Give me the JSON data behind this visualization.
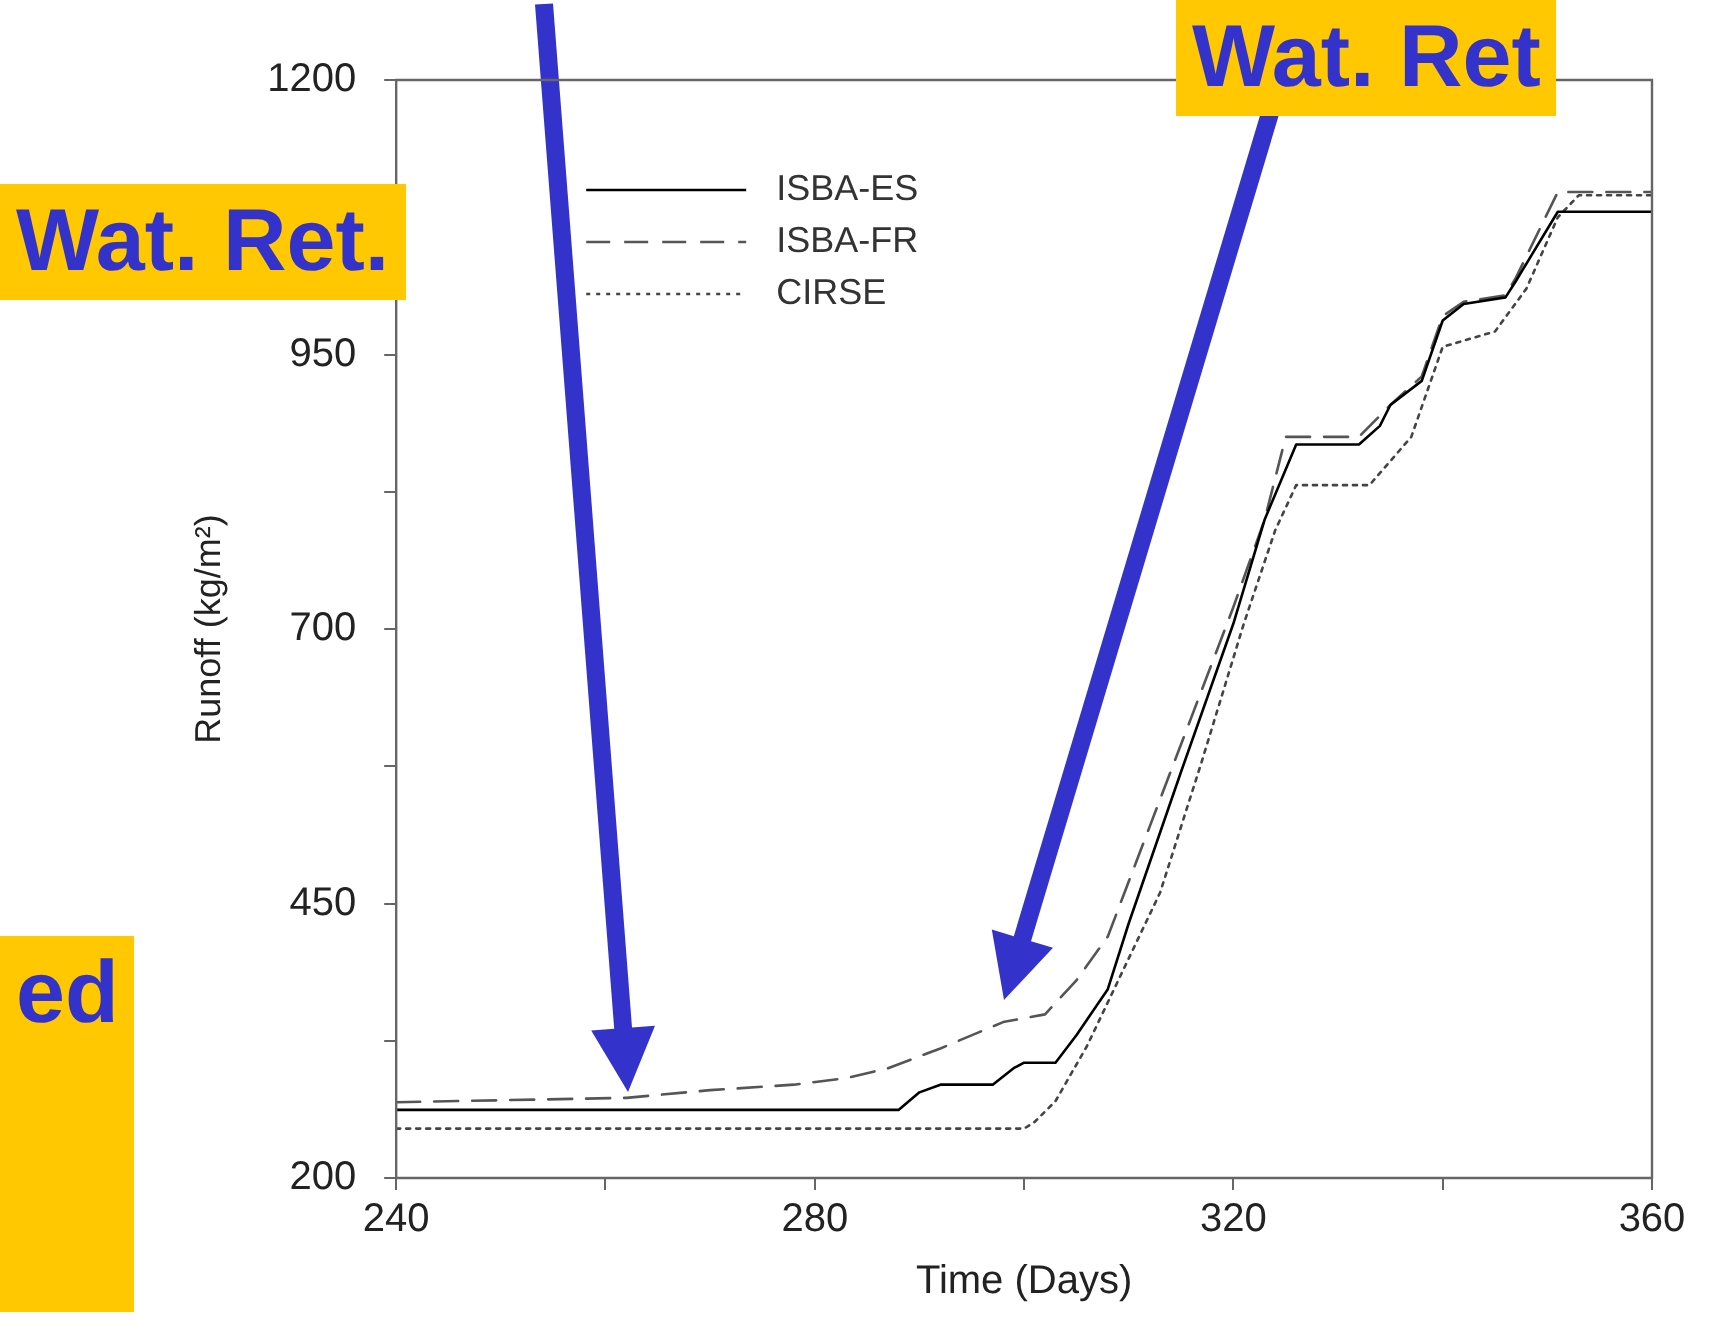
{
  "chart_data": {
    "type": "line",
    "xlabel": "Time (Days)",
    "ylabel": "Runoff (kg/m²)",
    "xlim": [
      240,
      360
    ],
    "xticks": [
      240,
      {
        "value": 260,
        "label": null
      },
      280,
      {
        "value": 300,
        "label": null
      },
      320,
      {
        "value": 340,
        "label": null
      },
      360
    ],
    "ylim": [
      200,
      1200
    ],
    "yticks": [
      200,
      {
        "value": 325,
        "label": null
      },
      450,
      {
        "value": 575,
        "label": null
      },
      700,
      {
        "value": 825,
        "label": null
      },
      950,
      {
        "value": 1075,
        "label": null
      },
      1200
    ],
    "grid": false,
    "legend": "top left",
    "marker": "none",
    "annotations": [
      "Wat. Ret.",
      "Wat. Ret",
      "ed"
    ],
    "series": [
      {
        "name": "ISBA-ES",
        "color": "#000000",
        "line_style": "solid",
        "x": [
          240,
          288,
          290,
          292,
          297,
          299,
          300,
          303,
          305,
          308,
          310,
          315,
          320,
          323,
          326,
          332,
          334,
          335,
          338,
          340,
          342,
          346,
          347,
          351,
          360
        ],
        "values": [
          262,
          262,
          278,
          285,
          285,
          300,
          305,
          305,
          330,
          372,
          432,
          570,
          705,
          800,
          868,
          868,
          885,
          904,
          926,
          981,
          996,
          1002,
          1017,
          1080,
          1080
        ]
      },
      {
        "name": "ISBA-FR",
        "color": "#555555",
        "line_style": "dashed",
        "x": [
          240,
          262,
          270,
          278,
          283,
          287,
          292,
          298,
          302,
          305,
          308,
          312,
          316,
          320,
          323,
          325,
          332,
          335,
          338,
          340,
          342,
          346,
          347,
          351,
          360
        ],
        "values": [
          269,
          273,
          280,
          285,
          291,
          300,
          318,
          342,
          349,
          380,
          420,
          520,
          620,
          720,
          800,
          875,
          875,
          904,
          930,
          985,
          998,
          1004,
          1020,
          1098,
          1098
        ]
      },
      {
        "name": "CIRSE",
        "color": "#444444",
        "line_style": "dotted",
        "x": [
          240,
          300,
          301,
          303,
          306,
          310,
          313,
          317,
          321,
          324,
          326,
          333,
          337,
          340,
          345,
          348,
          351,
          353,
          360
        ],
        "values": [
          245,
          245,
          251,
          270,
          320,
          400,
          460,
          580,
          705,
          790,
          831,
          831,
          875,
          957,
          971,
          1010,
          1075,
          1095,
          1095
        ]
      }
    ]
  }
}
